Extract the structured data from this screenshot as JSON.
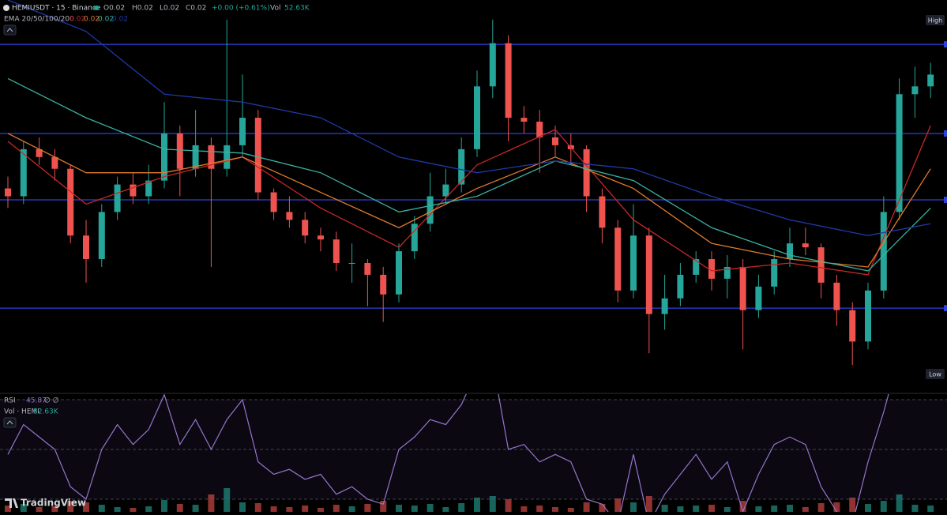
{
  "header": {
    "symbol": "HEMIUSDT · 15 · Binance",
    "open": "O0.02",
    "high": "H0.02",
    "low": "L0.02",
    "close": "C0.02",
    "change": "+0.00 (+0.61%)",
    "vol_label": "Vol",
    "vol_value": "52.63K",
    "ema_label": "EMA 20/50/100/200",
    "ema_values": [
      "0.02",
      "0.02",
      "0.02",
      "0.02"
    ]
  },
  "price_labels": {
    "high": "High",
    "low": "Low"
  },
  "rsi_header": {
    "label": "RSI",
    "value": "45.87",
    "extra": "∅ ∅"
  },
  "vol_header": {
    "label": "Vol · HEMI",
    "value": "52.63K"
  },
  "brand": "TradingView",
  "chart_data": {
    "type": "candlestick",
    "ylim": [
      0,
      100
    ],
    "levels": [
      88.7,
      66,
      49.1,
      21.5
    ],
    "ohlc": [
      [
        52,
        55,
        47,
        50
      ],
      [
        50,
        64,
        48,
        62
      ],
      [
        62,
        65,
        58,
        60
      ],
      [
        60,
        62,
        54,
        57
      ],
      [
        57,
        58,
        38,
        40
      ],
      [
        40,
        44,
        28,
        34
      ],
      [
        34,
        48,
        32,
        46
      ],
      [
        46,
        55,
        44,
        53
      ],
      [
        53,
        56,
        48,
        50
      ],
      [
        50,
        58,
        48,
        54
      ],
      [
        54,
        74,
        52,
        66
      ],
      [
        66,
        68,
        50,
        57
      ],
      [
        57,
        72,
        55,
        63
      ],
      [
        63,
        65,
        32,
        57
      ],
      [
        57,
        95,
        55,
        63
      ],
      [
        63,
        81,
        60,
        70
      ],
      [
        70,
        72,
        49,
        51
      ],
      [
        51,
        52,
        44,
        46
      ],
      [
        46,
        50,
        42,
        44
      ],
      [
        44,
        46,
        38,
        40
      ],
      [
        40,
        42,
        36,
        39
      ],
      [
        39,
        41,
        31,
        33
      ],
      [
        33,
        38,
        28,
        33
      ],
      [
        33,
        34,
        22,
        30
      ],
      [
        30,
        32,
        18,
        25
      ],
      [
        25,
        38,
        23,
        36
      ],
      [
        36,
        45,
        34,
        43
      ],
      [
        43,
        56,
        41,
        50
      ],
      [
        50,
        57,
        48,
        53
      ],
      [
        53,
        65,
        51,
        62
      ],
      [
        62,
        82,
        60,
        78
      ],
      [
        78,
        95,
        75,
        89
      ],
      [
        89,
        91,
        64,
        70
      ],
      [
        70,
        73,
        66,
        69
      ],
      [
        69,
        72,
        56,
        65
      ],
      [
        65,
        68,
        60,
        63
      ],
      [
        63,
        66,
        58,
        62
      ],
      [
        62,
        63,
        46,
        50
      ],
      [
        50,
        52,
        38,
        42
      ],
      [
        42,
        44,
        23,
        26
      ],
      [
        26,
        48,
        24,
        40
      ],
      [
        40,
        42,
        10,
        20
      ],
      [
        20,
        30,
        16,
        24
      ],
      [
        24,
        33,
        22,
        30
      ],
      [
        30,
        36,
        28,
        34
      ],
      [
        34,
        36,
        26,
        29
      ],
      [
        29,
        35,
        24,
        32
      ],
      [
        32,
        34,
        11,
        21
      ],
      [
        21,
        30,
        19,
        27
      ],
      [
        27,
        36,
        25,
        34
      ],
      [
        34,
        42,
        32,
        38
      ],
      [
        38,
        42,
        35,
        37
      ],
      [
        37,
        38,
        24,
        28
      ],
      [
        28,
        30,
        17,
        21
      ],
      [
        21,
        23,
        7,
        13
      ],
      [
        13,
        28,
        11,
        26
      ],
      [
        26,
        50,
        24,
        46
      ],
      [
        46,
        80,
        44,
        76
      ],
      [
        76,
        83,
        70,
        78
      ],
      [
        78,
        84,
        75,
        81
      ]
    ],
    "ema_x": [
      0,
      5,
      10,
      15,
      20,
      25,
      30,
      35,
      40,
      45,
      50,
      55,
      59
    ],
    "series": [
      {
        "name": "EMA 20",
        "color": "#c62828",
        "values": [
          64,
          48,
          55,
          60,
          47,
          37,
          58,
          67,
          44,
          31,
          33,
          30,
          68
        ]
      },
      {
        "name": "EMA 50",
        "color": "#e07b2a",
        "values": [
          66,
          56,
          56,
          60,
          51,
          42,
          52,
          60,
          52,
          38,
          34,
          32,
          57
        ]
      },
      {
        "name": "EMA 100",
        "color": "#3ab0a0",
        "values": [
          80,
          70,
          62,
          61,
          56,
          46,
          50,
          59,
          54,
          42,
          35,
          31,
          47
        ]
      },
      {
        "name": "EMA 200",
        "color": "#1f3aa8",
        "values": [
          100,
          92,
          76,
          74,
          70,
          60,
          56,
          59,
          57,
          50,
          44,
          40,
          43
        ]
      }
    ],
    "rsi": {
      "color": "#9575cd",
      "ylim": [
        30,
        70
      ],
      "yticks": [
        30,
        50,
        70
      ],
      "values": [
        48,
        60,
        55,
        50,
        35,
        30,
        50,
        60,
        52,
        58,
        72,
        52,
        62,
        50,
        62,
        70,
        45,
        40,
        42,
        38,
        40,
        32,
        35,
        30,
        28,
        50,
        55,
        62,
        60,
        68,
        82,
        85,
        50,
        52,
        45,
        48,
        45,
        30,
        28,
        20,
        48,
        20,
        32,
        40,
        48,
        38,
        45,
        25,
        40,
        52,
        55,
        52,
        35,
        25,
        20,
        45,
        65,
        88,
        80,
        82
      ]
    },
    "volume": [
      8,
      10,
      6,
      7,
      14,
      12,
      9,
      6,
      5,
      7,
      15,
      10,
      9,
      22,
      30,
      12,
      11,
      7,
      6,
      8,
      5,
      9,
      7,
      10,
      14,
      9,
      8,
      10,
      6,
      11,
      18,
      20,
      16,
      7,
      8,
      6,
      5,
      12,
      10,
      17,
      12,
      20,
      9,
      7,
      8,
      9,
      6,
      14,
      7,
      8,
      9,
      6,
      11,
      12,
      18,
      10,
      14,
      22,
      9,
      8
    ],
    "vol_ylim": [
      0,
      100
    ]
  }
}
